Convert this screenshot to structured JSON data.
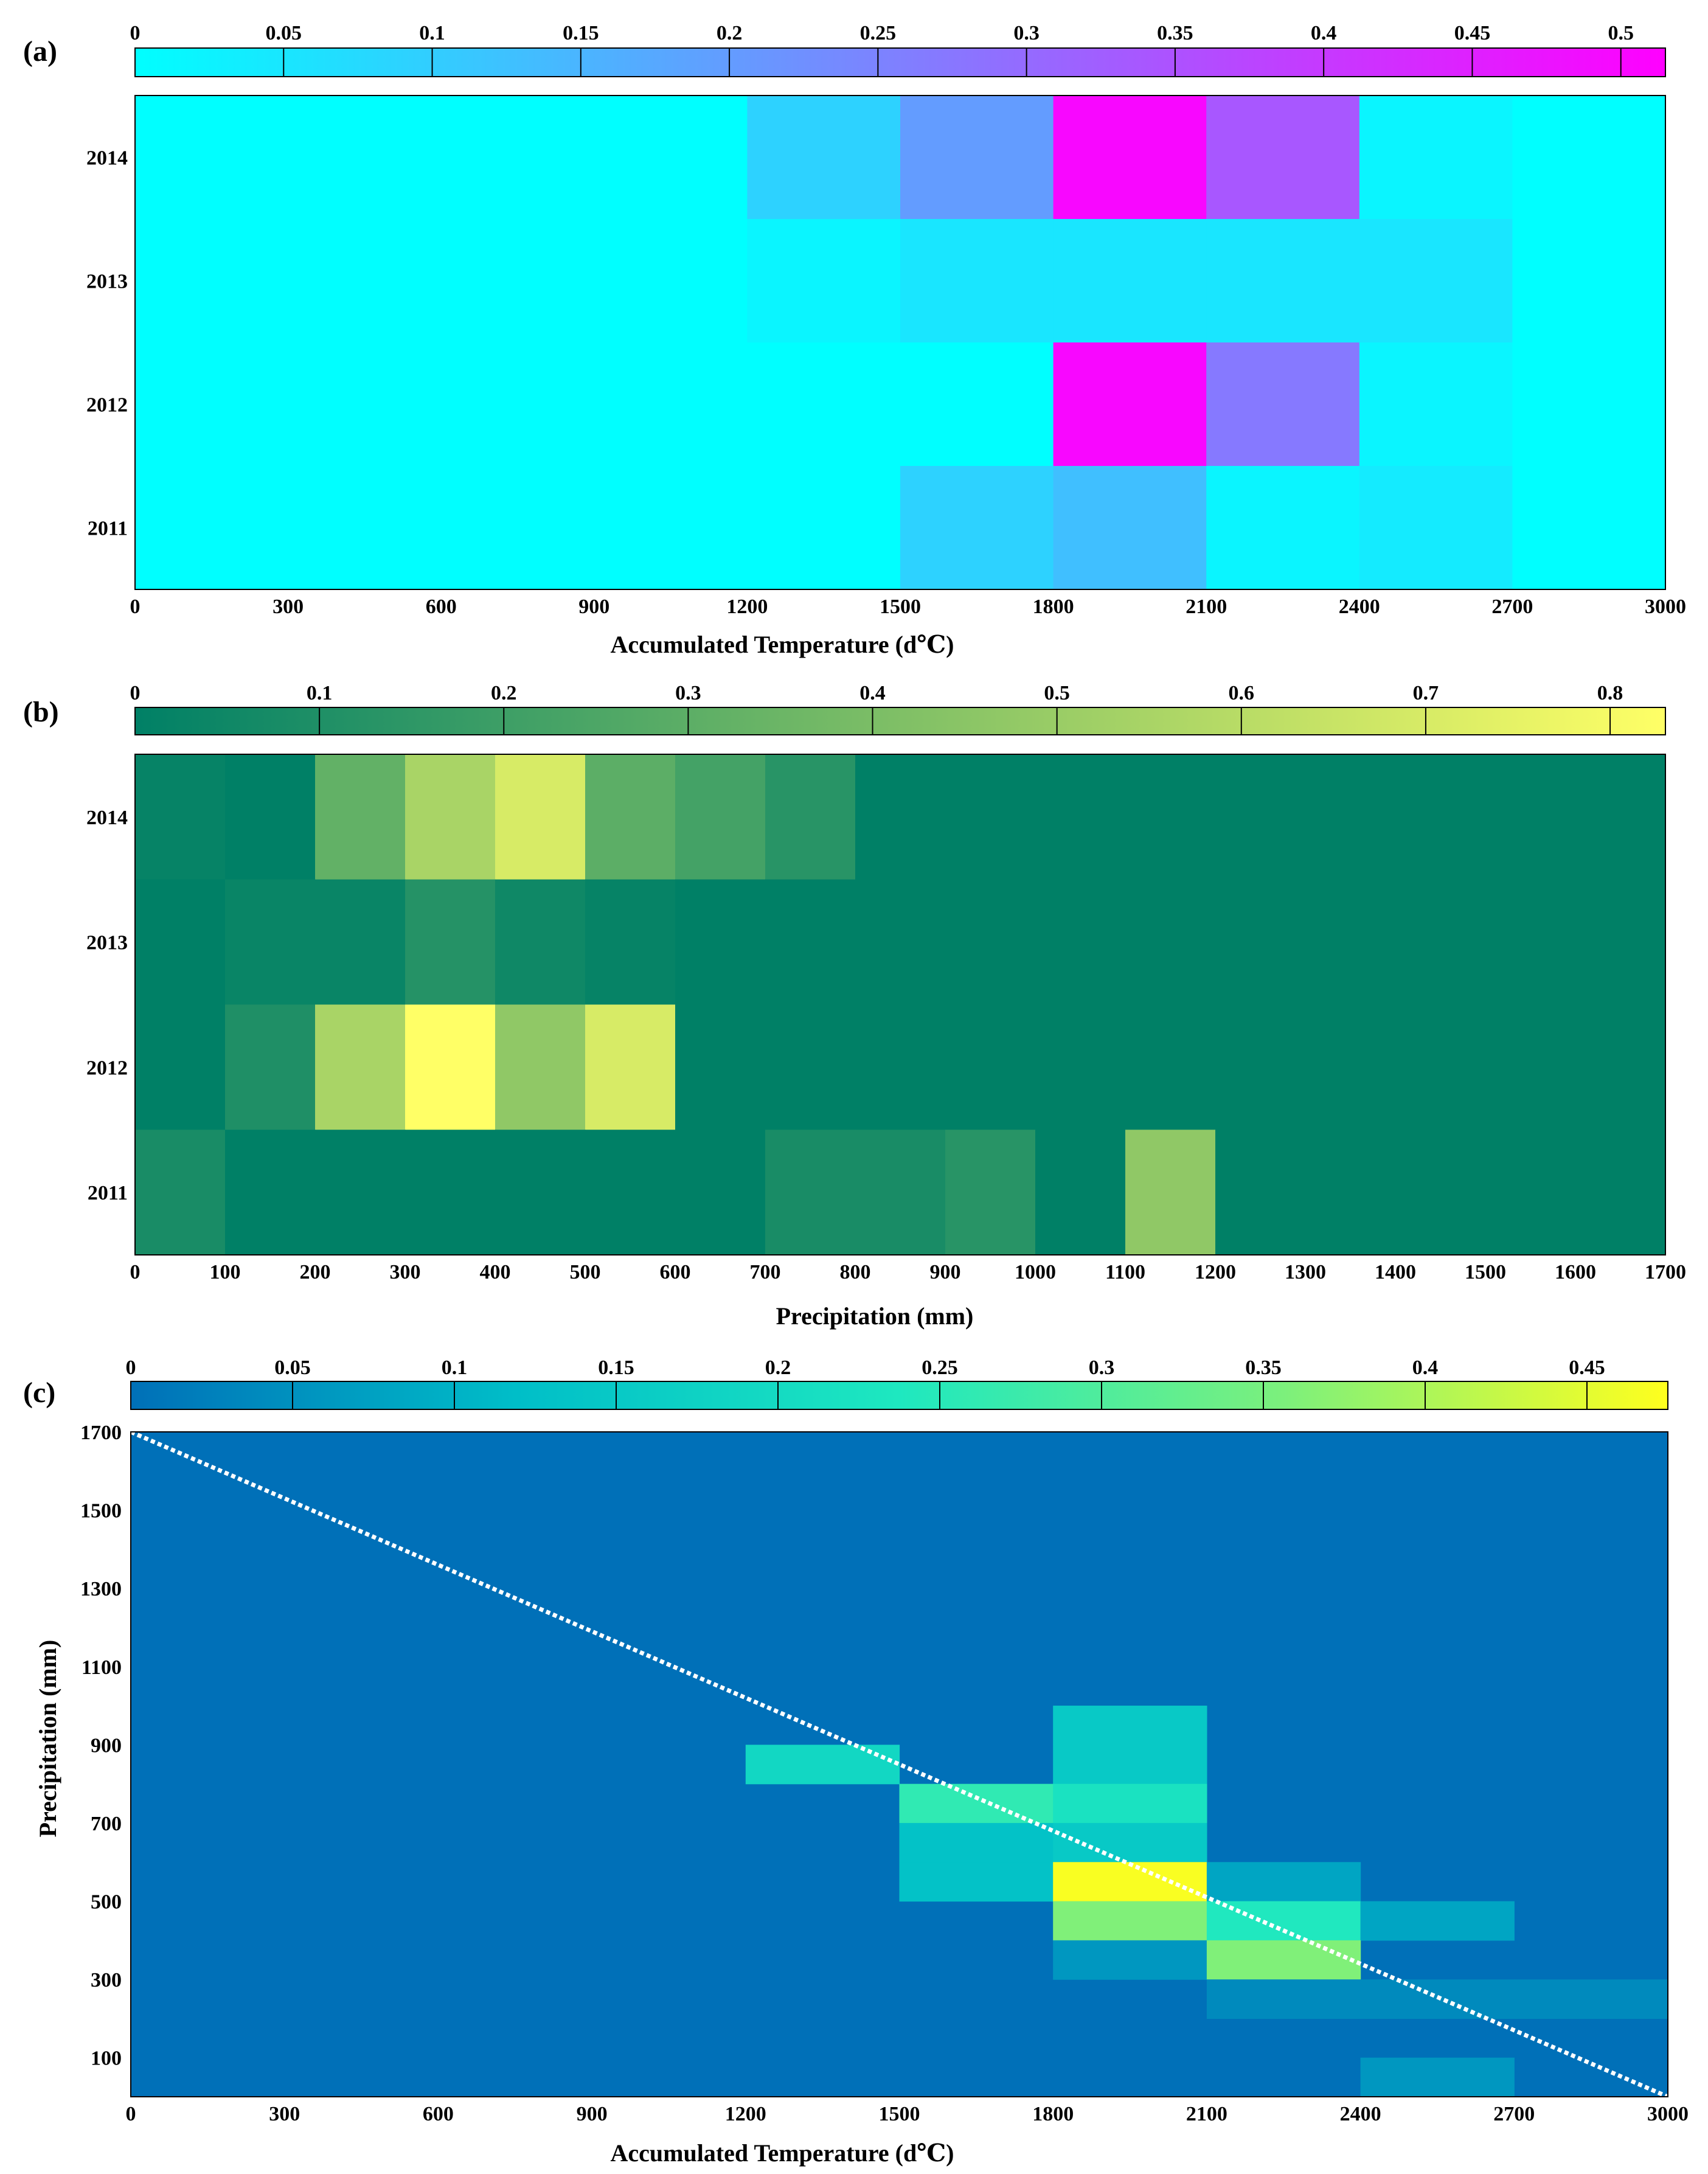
{
  "figure": {
    "panel_labels": [
      "(a)",
      "(b)",
      "(c)"
    ]
  },
  "chart_data": [
    {
      "panel": "(a)",
      "type": "heatmap",
      "xlabel": "Accumulated Temperature (d℃)",
      "ylabel": "",
      "x_edges": [
        0,
        300,
        600,
        900,
        1200,
        1500,
        1800,
        2100,
        2400,
        2700,
        3000
      ],
      "xticks": [
        "0",
        "300",
        "600",
        "900",
        "1200",
        "1500",
        "1800",
        "2100",
        "2400",
        "2700",
        "3000"
      ],
      "y_categories": [
        "2014",
        "2013",
        "2012",
        "2011"
      ],
      "xlim": [
        0,
        3000
      ],
      "colorbar": {
        "min": 0,
        "max": 0.515,
        "ticks": [
          "0",
          "0.05",
          "0.1",
          "0.15",
          "0.2",
          "0.25",
          "0.3",
          "0.35",
          "0.4",
          "0.45",
          "0.5"
        ],
        "colors": [
          "#00ffff",
          "#ff00ff"
        ]
      },
      "values": [
        [
          0,
          0,
          0,
          0,
          0.09,
          0.2,
          0.5,
          0.34,
          0.02,
          0
        ],
        [
          0,
          0,
          0,
          0,
          0.02,
          0.05,
          0.05,
          0.05,
          0.05,
          0
        ],
        [
          0,
          0,
          0,
          0,
          0,
          0,
          0.5,
          0.27,
          0.02,
          0
        ],
        [
          0,
          0,
          0,
          0,
          0,
          0.09,
          0.13,
          0.02,
          0.04,
          0
        ]
      ]
    },
    {
      "panel": "(b)",
      "type": "heatmap",
      "xlabel": "Precipitation (mm)",
      "ylabel": "",
      "x_edges": [
        0,
        100,
        200,
        300,
        400,
        500,
        600,
        700,
        800,
        900,
        1000,
        1100,
        1200,
        1300,
        1400,
        1500,
        1600,
        1700
      ],
      "xticks": [
        "0",
        "100",
        "200",
        "300",
        "400",
        "500",
        "600",
        "700",
        "800",
        "900",
        "1000",
        "1100",
        "1200",
        "1300",
        "1400",
        "1500",
        "1600",
        "1700"
      ],
      "y_categories": [
        "2014",
        "2013",
        "2012",
        "2011"
      ],
      "xlim": [
        0,
        1700
      ],
      "colorbar": {
        "min": 0,
        "max": 0.83,
        "ticks": [
          "0",
          "0.1",
          "0.2",
          "0.3",
          "0.4",
          "0.5",
          "0.6",
          "0.7",
          "0.8"
        ],
        "colors": [
          "#008066",
          "#ffff66"
        ]
      },
      "values": [
        [
          0.02,
          0,
          0.32,
          0.55,
          0.7,
          0.3,
          0.22,
          0.13,
          0,
          0,
          0,
          0,
          0,
          0,
          0,
          0,
          0
        ],
        [
          0,
          0.03,
          0.03,
          0.12,
          0.05,
          0.02,
          0,
          0,
          0,
          0,
          0,
          0,
          0,
          0,
          0,
          0,
          0
        ],
        [
          0,
          0.1,
          0.55,
          0.83,
          0.47,
          0.7,
          0,
          0,
          0,
          0,
          0,
          0,
          0,
          0,
          0,
          0,
          0
        ],
        [
          0.08,
          0,
          0,
          0,
          0,
          0,
          0,
          0.08,
          0.08,
          0.13,
          0,
          0.47,
          0,
          0,
          0,
          0,
          0
        ]
      ]
    },
    {
      "panel": "(c)",
      "type": "heatmap",
      "xlabel": "Accumulated Temperature (d℃)",
      "ylabel": "Precipitation (mm)",
      "x_edges": [
        0,
        300,
        600,
        900,
        1200,
        1500,
        1800,
        2100,
        2400,
        2700,
        3000
      ],
      "y_edges": [
        0,
        100,
        200,
        300,
        400,
        500,
        600,
        700,
        800,
        900,
        1000,
        1100,
        1200,
        1300,
        1400,
        1500,
        1600,
        1700
      ],
      "xticks": [
        "0",
        "300",
        "600",
        "900",
        "1200",
        "1500",
        "1800",
        "2100",
        "2400",
        "2700",
        "3000"
      ],
      "yticks": [
        "100",
        "300",
        "500",
        "700",
        "900",
        "1100",
        "1300",
        "1500",
        "1700"
      ],
      "xlim": [
        0,
        3000
      ],
      "ylim": [
        0,
        1700
      ],
      "colorbar": {
        "min": 0,
        "max": 0.475,
        "ticks": [
          "0",
          "0.05",
          "0.1",
          "0.15",
          "0.2",
          "0.25",
          "0.3",
          "0.35",
          "0.4",
          "0.45"
        ],
        "colors": [
          "#0070b8",
          "#00bec8",
          "#1ee8c0",
          "#7cf07c",
          "#ffff1e"
        ]
      },
      "cells": [
        {
          "x0": 1200,
          "x1": 1500,
          "y0": 800,
          "y1": 900,
          "v": 0.19
        },
        {
          "x0": 1800,
          "x1": 2100,
          "y0": 900,
          "y1": 1000,
          "v": 0.15
        },
        {
          "x0": 1800,
          "x1": 2100,
          "y0": 800,
          "y1": 900,
          "v": 0.15
        },
        {
          "x0": 1500,
          "x1": 1800,
          "y0": 700,
          "y1": 800,
          "v": 0.26
        },
        {
          "x0": 1800,
          "x1": 2100,
          "y0": 700,
          "y1": 800,
          "v": 0.22
        },
        {
          "x0": 1500,
          "x1": 1800,
          "y0": 600,
          "y1": 700,
          "v": 0.13
        },
        {
          "x0": 1800,
          "x1": 2100,
          "y0": 600,
          "y1": 700,
          "v": 0.15
        },
        {
          "x0": 1500,
          "x1": 1800,
          "y0": 500,
          "y1": 600,
          "v": 0.13
        },
        {
          "x0": 1800,
          "x1": 2100,
          "y0": 500,
          "y1": 600,
          "v": 0.47
        },
        {
          "x0": 2100,
          "x1": 2400,
          "y0": 500,
          "y1": 600,
          "v": 0.08
        },
        {
          "x0": 1800,
          "x1": 2100,
          "y0": 400,
          "y1": 500,
          "v": 0.36
        },
        {
          "x0": 2100,
          "x1": 2400,
          "y0": 400,
          "y1": 500,
          "v": 0.24
        },
        {
          "x0": 2400,
          "x1": 2700,
          "y0": 400,
          "y1": 500,
          "v": 0.08
        },
        {
          "x0": 1800,
          "x1": 2100,
          "y0": 300,
          "y1": 400,
          "v": 0.06
        },
        {
          "x0": 2100,
          "x1": 2400,
          "y0": 300,
          "y1": 400,
          "v": 0.36
        },
        {
          "x0": 2100,
          "x1": 2400,
          "y0": 200,
          "y1": 300,
          "v": 0.04
        },
        {
          "x0": 2400,
          "x1": 2700,
          "y0": 200,
          "y1": 300,
          "v": 0.04
        },
        {
          "x0": 2700,
          "x1": 3000,
          "y0": 200,
          "y1": 300,
          "v": 0.04
        },
        {
          "x0": 2400,
          "x1": 2700,
          "y0": 0,
          "y1": 100,
          "v": 0.06
        }
      ],
      "trend_line": {
        "from": [
          0,
          1700
        ],
        "to": [
          3000,
          0
        ],
        "color": "#ffffff",
        "style": "dotted"
      }
    }
  ]
}
